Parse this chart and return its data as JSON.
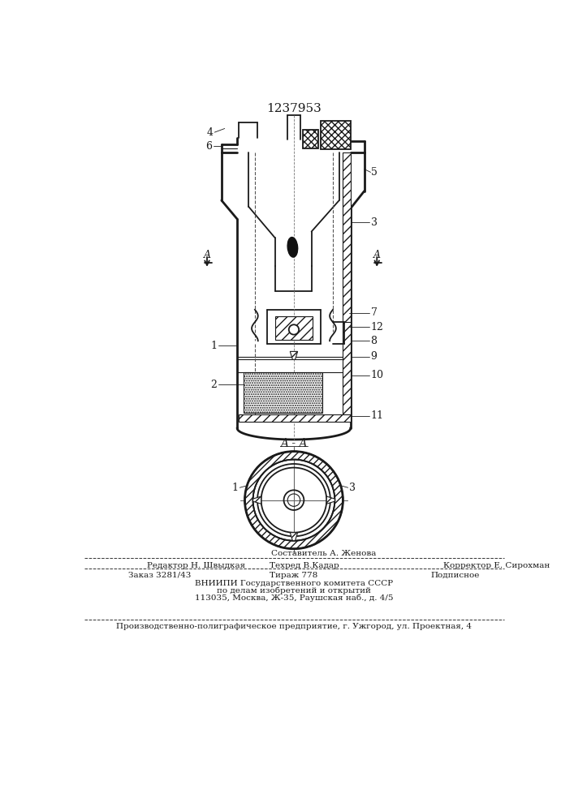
{
  "title": "1237953",
  "bg_color": "#ffffff",
  "line_color": "#1a1a1a",
  "footer_line1_left": "Редактор Н. Швыдкая",
  "footer_line1_center": "Техред В.Кадар",
  "footer_line1_right": "Корректор Е. Сирохман",
  "footer_line0_center": "Составитель А. Женова",
  "footer_zakaz": "Заказ 3281/43",
  "footer_tirazh": "Тираж 778",
  "footer_podp": "Подписное",
  "footer_vniip1": "ВНИИПИ Государственного комитета СССР",
  "footer_vniip2": "по делам изобретений и открытий",
  "footer_vniip3": "113035, Москва, Ж-35, Раушская наб., д. 4/5",
  "footer_last": "Производственно-полиграфическое предприятие, г. Ужгород, ул. Проектная, 4",
  "label_AA": "A - A"
}
